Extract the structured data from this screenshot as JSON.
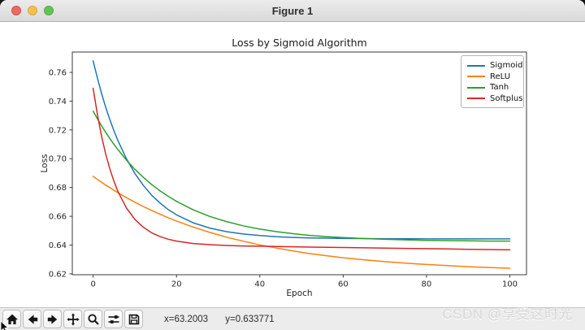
{
  "window": {
    "title": "Figure 1",
    "traffic_lights": {
      "close": "#ed6a5e",
      "minimize": "#f5bf4f",
      "zoom": "#61c555"
    }
  },
  "toolbar": {
    "buttons": [
      "home-icon",
      "back-arrow-icon",
      "forward-arrow-icon",
      "pan-icon",
      "zoom-magnifier-icon",
      "configure-subplots-icon",
      "save-floppy-icon"
    ],
    "status_x": "x=63.2003",
    "status_y": "y=0.633771"
  },
  "watermark": {
    "text": "CSDN @享受这时光",
    "color": "#d8d8d8"
  },
  "chart_data": {
    "type": "line",
    "title": "Loss by Sigmoid Algorithm",
    "xlabel": "Epoch",
    "ylabel": "Loss",
    "xlim": [
      -5,
      104
    ],
    "ylim": [
      0.6194,
      0.7741
    ],
    "x_ticks": [
      "0",
      "20",
      "40",
      "60",
      "80",
      "100"
    ],
    "y_ticks": [
      "0.62",
      "0.64",
      "0.66",
      "0.68",
      "0.70",
      "0.72",
      "0.74",
      "0.76"
    ],
    "grid": false,
    "legend_position": "upper right",
    "x": [
      0,
      1,
      2,
      3,
      4,
      5,
      6,
      8,
      10,
      12,
      14,
      16,
      18,
      20,
      24,
      28,
      32,
      36,
      40,
      44,
      48,
      52,
      56,
      60,
      65,
      70,
      75,
      80,
      85,
      90,
      95,
      100
    ],
    "series": [
      {
        "name": "Sigmoid",
        "color": "#1f77b4",
        "values": [
          0.768,
          0.7562,
          0.7456,
          0.7359,
          0.7272,
          0.7193,
          0.7122,
          0.6999,
          0.6898,
          0.6816,
          0.6748,
          0.6693,
          0.6647,
          0.661,
          0.6555,
          0.6518,
          0.6493,
          0.6477,
          0.6466,
          0.6458,
          0.6453,
          0.645,
          0.6448,
          0.6446,
          0.6445,
          0.6444,
          0.6444,
          0.6443,
          0.6443,
          0.6443,
          0.6443,
          0.6443
        ]
      },
      {
        "name": "ReLU",
        "color": "#ff7f0e",
        "values": [
          0.6877,
          0.6856,
          0.6837,
          0.6817,
          0.6799,
          0.678,
          0.6763,
          0.6729,
          0.6698,
          0.6668,
          0.6641,
          0.6615,
          0.659,
          0.6567,
          0.6525,
          0.6488,
          0.6455,
          0.6427,
          0.6401,
          0.6379,
          0.6359,
          0.6341,
          0.6326,
          0.6312,
          0.6298,
          0.6285,
          0.6274,
          0.6265,
          0.6257,
          0.625,
          0.6244,
          0.6239
        ]
      },
      {
        "name": "Tanh",
        "color": "#2ca02c",
        "values": [
          0.733,
          0.7278,
          0.723,
          0.7184,
          0.714,
          0.7099,
          0.7061,
          0.699,
          0.6927,
          0.6872,
          0.6822,
          0.6778,
          0.6739,
          0.6704,
          0.6645,
          0.6599,
          0.6563,
          0.6534,
          0.6511,
          0.6493,
          0.6479,
          0.6467,
          0.6459,
          0.6452,
          0.6445,
          0.644,
          0.6436,
          0.6433,
          0.6431,
          0.643,
          0.6428,
          0.6428
        ]
      },
      {
        "name": "Softplus",
        "color": "#d62728",
        "values": [
          0.749,
          0.731,
          0.7159,
          0.7034,
          0.6929,
          0.6842,
          0.6769,
          0.6657,
          0.6579,
          0.6525,
          0.6486,
          0.646,
          0.6441,
          0.6428,
          0.6411,
          0.6403,
          0.6397,
          0.6394,
          0.6392,
          0.639,
          0.6388,
          0.6386,
          0.6385,
          0.6383,
          0.6381,
          0.6379,
          0.6377,
          0.6375,
          0.6373,
          0.6371,
          0.6369,
          0.6367
        ]
      }
    ]
  }
}
